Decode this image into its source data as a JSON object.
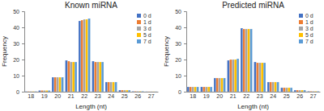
{
  "chart_data": [
    {
      "type": "bar",
      "title": "Known  miRNA",
      "x_label": "Length (nt)",
      "y_label": "Frequency",
      "categories": [
        "18",
        "19",
        "20",
        "21",
        "22",
        "23",
        "24",
        "25",
        "26",
        "27"
      ],
      "ylim": [
        0,
        50
      ],
      "yticks": [
        0,
        10,
        20,
        30,
        40,
        50
      ],
      "grid": false,
      "legend": "top-right",
      "series": [
        {
          "name": "0 d",
          "color": "#4472c4",
          "values": [
            0.2,
            0.8,
            9,
            19.5,
            44,
            19,
            6,
            1,
            0.3,
            0.1
          ]
        },
        {
          "name": "1 d",
          "color": "#ed7d31",
          "values": [
            0.2,
            0.8,
            9,
            19,
            44.5,
            18.5,
            6,
            1,
            0.3,
            0.1
          ]
        },
        {
          "name": "3 d",
          "color": "#a5a5a5",
          "values": [
            0.2,
            0.8,
            9,
            18.5,
            45,
            18.5,
            6,
            1,
            0.3,
            0.1
          ]
        },
        {
          "name": "5 d",
          "color": "#ffc000",
          "values": [
            0.2,
            0.8,
            9,
            18.5,
            45,
            18.5,
            6,
            1,
            0.3,
            0.1
          ]
        },
        {
          "name": "7 d",
          "color": "#5b9bd5",
          "values": [
            0.2,
            0.8,
            9,
            18.5,
            45.5,
            18.5,
            6,
            1,
            0.3,
            0.1
          ]
        }
      ]
    },
    {
      "type": "bar",
      "title": "Predicted  miRNA",
      "x_label": "Length (nt)",
      "y_label": "Frequency",
      "categories": [
        "18",
        "19",
        "20",
        "21",
        "22",
        "23",
        "24",
        "25",
        "26",
        "27"
      ],
      "ylim": [
        0,
        50
      ],
      "yticks": [
        0,
        10,
        20,
        30,
        40,
        50
      ],
      "grid": false,
      "legend": "top-right",
      "series": [
        {
          "name": "0 d",
          "color": "#4472c4",
          "values": [
            3,
            3,
            8.5,
            19.5,
            39.5,
            18.5,
            6,
            2.5,
            1,
            0.3
          ]
        },
        {
          "name": "1 d",
          "color": "#ed7d31",
          "values": [
            3,
            3,
            8.5,
            20,
            39,
            18,
            6,
            2.5,
            1,
            0.3
          ]
        },
        {
          "name": "3 d",
          "color": "#a5a5a5",
          "values": [
            3,
            3,
            8.5,
            20,
            39,
            18,
            6,
            2.5,
            1,
            0.3
          ]
        },
        {
          "name": "5 d",
          "color": "#ffc000",
          "values": [
            3,
            3,
            8.5,
            20,
            39,
            18,
            6,
            2.5,
            1,
            0.3
          ]
        },
        {
          "name": "7 d",
          "color": "#5b9bd5",
          "values": [
            3,
            3,
            8.5,
            20.5,
            39,
            18,
            6,
            2.5,
            1,
            0.3
          ]
        }
      ]
    }
  ]
}
